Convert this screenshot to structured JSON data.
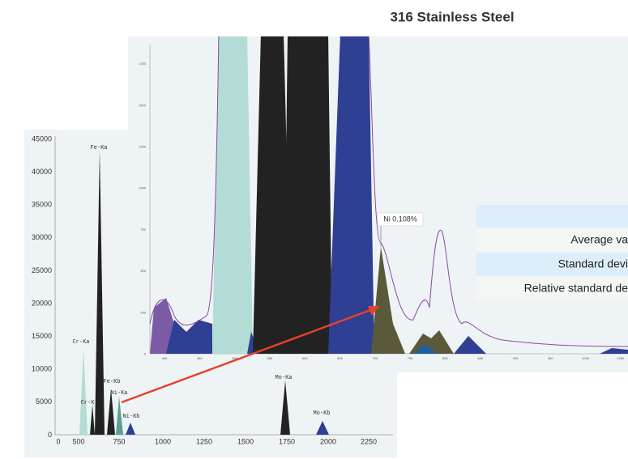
{
  "title": "316 Stainless Steel",
  "overview": {
    "yticks": [
      "45000",
      "40000",
      "35000",
      "30000",
      "25000",
      "20000",
      "15000",
      "10000",
      "5000",
      "0"
    ],
    "xticks": [
      "0",
      "500",
      "750",
      "1000",
      "1250",
      "1500",
      "1750",
      "2000",
      "2250"
    ],
    "peaks": [
      "Fe-Ka",
      "Cr-Ka",
      "Fe-Kb",
      "Ni-Ka",
      "Cr-K",
      "Ni-Kb",
      "Mo-Ka",
      "Mo-Kb"
    ]
  },
  "zoom": {
    "yticks": [
      "1750",
      "1500",
      "1250",
      "1000",
      "750",
      "500",
      "250",
      "0"
    ],
    "xticks": [
      "400",
      "450",
      "500",
      "550",
      "600",
      "650",
      "700",
      "750",
      "800",
      "850",
      "900",
      "950",
      "1000",
      "1250"
    ],
    "annotation": "Ni 0.108%"
  },
  "table": {
    "rows": [
      "Average va",
      "Standard devi",
      "Relative standard de"
    ]
  }
}
